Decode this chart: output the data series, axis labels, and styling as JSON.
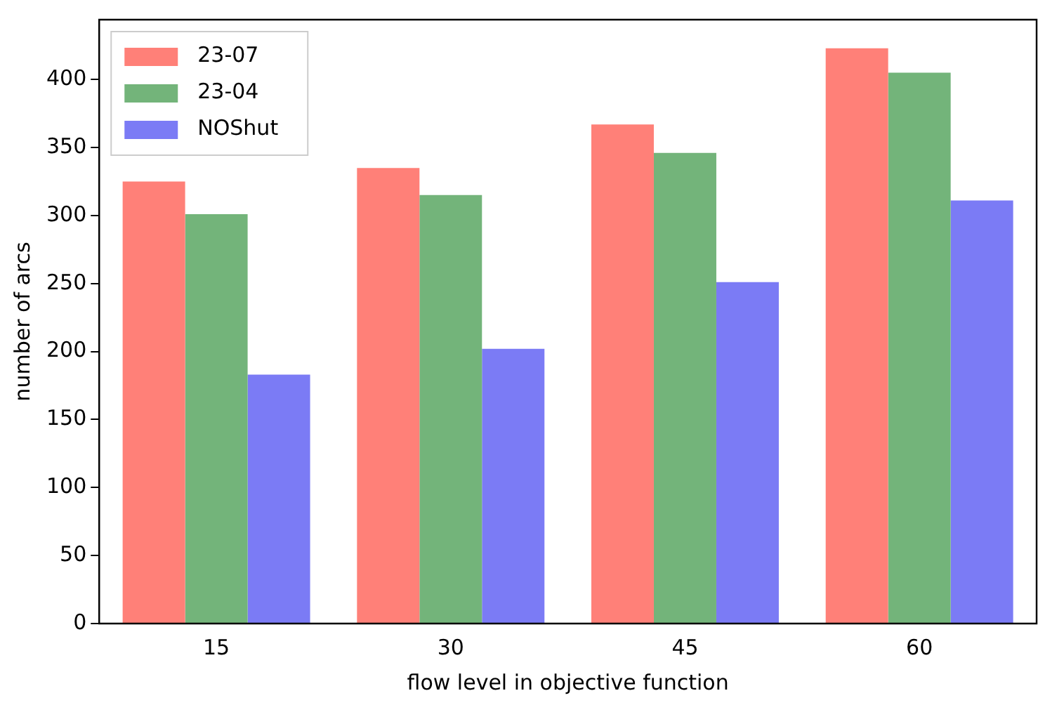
{
  "chart_data": {
    "type": "bar",
    "xlabel": "flow level in objective function",
    "ylabel": "number of arcs",
    "categories": [
      "15",
      "30",
      "45",
      "60"
    ],
    "series": [
      {
        "name": "23-07",
        "color": "#ff8078",
        "values": [
          325,
          335,
          367,
          423
        ]
      },
      {
        "name": "23-04",
        "color": "#73b47a",
        "values": [
          301,
          315,
          346,
          405
        ]
      },
      {
        "name": "NOShut",
        "color": "#7b7bf5",
        "values": [
          183,
          202,
          251,
          311
        ]
      }
    ],
    "ylim": [
      0,
      444
    ],
    "yticks": [
      0,
      50,
      100,
      150,
      200,
      250,
      300,
      350,
      400
    ],
    "grid": false,
    "legend": "top left"
  }
}
